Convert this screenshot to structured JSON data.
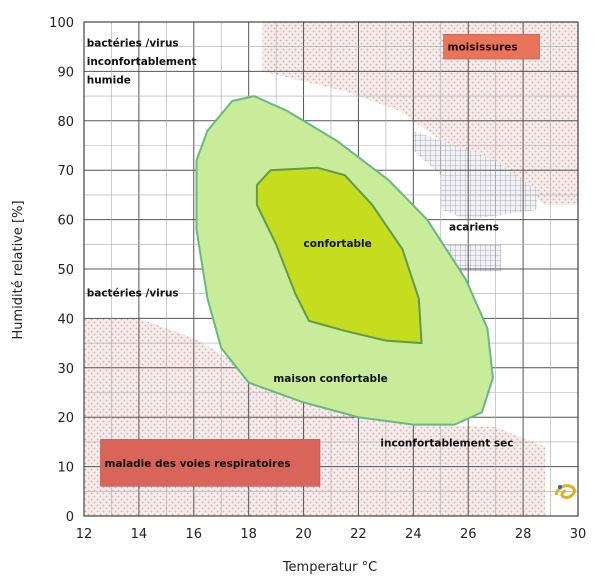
{
  "chart_data": {
    "type": "area",
    "title": "",
    "xlabel": "Temperatur °C",
    "ylabel": "Humidité relative [%]",
    "xlim": [
      12,
      30
    ],
    "ylim": [
      0,
      100
    ],
    "x_ticks": [
      12,
      14,
      16,
      18,
      20,
      22,
      24,
      26,
      28,
      30
    ],
    "y_ticks": [
      0,
      10,
      20,
      30,
      40,
      50,
      60,
      70,
      80,
      90,
      100
    ],
    "grid": true,
    "regions": [
      {
        "name": "maison confortable",
        "color": "#c8ec9a",
        "stroke": "#67b883",
        "polygon": [
          [
            16.1,
            72
          ],
          [
            16.5,
            78
          ],
          [
            17.4,
            84
          ],
          [
            18.2,
            85
          ],
          [
            19.4,
            82
          ],
          [
            21.2,
            76
          ],
          [
            23.1,
            68
          ],
          [
            24.5,
            60
          ],
          [
            25.9,
            48
          ],
          [
            26.7,
            38
          ],
          [
            26.9,
            28
          ],
          [
            26.5,
            21
          ],
          [
            25.5,
            18.5
          ],
          [
            24.0,
            18.5
          ],
          [
            22.0,
            20
          ],
          [
            20.0,
            23
          ],
          [
            18.0,
            27
          ],
          [
            17.0,
            34
          ],
          [
            16.5,
            44
          ],
          [
            16.1,
            58
          ]
        ]
      },
      {
        "name": "confortable",
        "color": "#c6dc1e",
        "stroke": "#5f9a4d",
        "polygon": [
          [
            18.3,
            67
          ],
          [
            18.8,
            70
          ],
          [
            20.5,
            70.5
          ],
          [
            21.5,
            69
          ],
          [
            22.5,
            63
          ],
          [
            23.6,
            54
          ],
          [
            24.2,
            44
          ],
          [
            24.3,
            35
          ],
          [
            23.0,
            35.5
          ],
          [
            21.5,
            37.5
          ],
          [
            20.2,
            39.5
          ],
          [
            19.7,
            45
          ],
          [
            19.0,
            55
          ],
          [
            18.3,
            63
          ]
        ]
      }
    ],
    "hatched_zones": [
      {
        "polygon": [
          [
            18.5,
            100
          ],
          [
            30,
            100
          ],
          [
            30,
            63
          ],
          [
            28.8,
            63
          ],
          [
            28,
            66
          ],
          [
            26,
            72
          ],
          [
            24.5,
            78
          ],
          [
            23.5,
            82
          ],
          [
            21.5,
            86
          ],
          [
            18.5,
            90
          ]
        ]
      },
      {
        "polygon": [
          [
            12,
            40
          ],
          [
            14,
            40
          ],
          [
            16,
            36
          ],
          [
            18.5,
            28
          ],
          [
            21,
            22.5
          ],
          [
            24.5,
            18.5
          ],
          [
            27,
            18
          ],
          [
            28.8,
            14
          ],
          [
            28.8,
            0
          ],
          [
            12,
            0
          ]
        ]
      }
    ],
    "labels": [
      {
        "text": "bactéries /virus",
        "x": 12.1,
        "y": 95
      },
      {
        "text": "inconfortablement",
        "x": 12.1,
        "y": 91.3
      },
      {
        "text": "humide",
        "x": 12.1,
        "y": 87.6
      },
      {
        "text": "bactéries /virus",
        "x": 12.1,
        "y": 44.4
      },
      {
        "text": "confortable",
        "x": 20.0,
        "y": 54.5
      },
      {
        "text": "acariens",
        "x": 25.3,
        "y": 57.8
      },
      {
        "text": "maison confortable",
        "x": 18.9,
        "y": 27.1
      },
      {
        "text": "inconfortablement sec",
        "x": 22.8,
        "y": 14.1
      }
    ],
    "badges": [
      {
        "text": "moisissures",
        "x0": 25.1,
        "x1": 28.6,
        "y0": 92.5,
        "y1": 97.5,
        "color": "#e8745a"
      },
      {
        "text": "maladie des voies respiratoires",
        "x0": 12.6,
        "x1": 20.6,
        "y0": 6,
        "y1": 15.5,
        "color": "#d9655a"
      }
    ]
  }
}
